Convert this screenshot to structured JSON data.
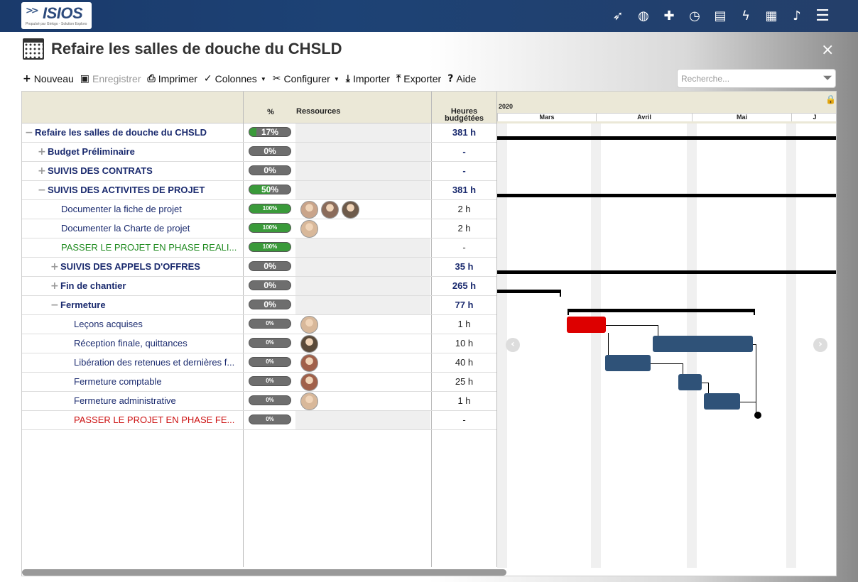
{
  "app": {
    "logo_text": "ISIOS",
    "logo_tagline": "Propulsé par Ginkgo - Solution Exploro",
    "top_icons": [
      "rocket-icon",
      "globe-icon",
      "puzzle-icon",
      "stopwatch-icon",
      "document-icon",
      "bolt-icon",
      "calendar-icon",
      "bell-icon",
      "hamburger-menu-icon"
    ]
  },
  "page": {
    "title": "Refaire les salles de douche du CHSLD",
    "close": "×"
  },
  "toolbar": {
    "nouveau": "Nouveau",
    "enregistrer": "Enregistrer",
    "imprimer": "Imprimer",
    "colonnes": "Colonnes",
    "configurer": "Configurer",
    "importer": "Importer",
    "exporter": "Exporter",
    "aide": "Aide"
  },
  "search": {
    "placeholder": "Recherche..."
  },
  "grid": {
    "headers": {
      "pct": "%",
      "resources": "Ressources",
      "hours_line1": "Heures",
      "hours_line2": "budgétées"
    },
    "rows": [
      {
        "name": "Refaire les salles de douche du CHSLD",
        "toggle": "−",
        "pct": 17,
        "pct_label": "17%",
        "hours": "381 h"
      },
      {
        "name": "Budget Préliminaire",
        "toggle": "+",
        "pct": 0,
        "pct_label": "0%",
        "hours": "-"
      },
      {
        "name": "SUIVIS DES CONTRATS",
        "toggle": "+",
        "pct": 0,
        "pct_label": "0%",
        "hours": "-"
      },
      {
        "name": "SUIVIS DES ACTIVITES DE PROJET",
        "toggle": "−",
        "pct": 50,
        "pct_label": "50%",
        "hours": "381 h"
      },
      {
        "name": "Documenter la fiche de projet",
        "pct": 100,
        "pct_label": "100%",
        "hours": "2 h"
      },
      {
        "name": "Documenter la Charte de projet",
        "pct": 100,
        "pct_label": "100%",
        "hours": "2 h"
      },
      {
        "name": "PASSER LE PROJET EN PHASE REALI...",
        "pct": 100,
        "pct_label": "100%",
        "hours": "-"
      },
      {
        "name": "SUIVIS DES APPELS D'OFFRES",
        "toggle": "+",
        "pct": 0,
        "pct_label": "0%",
        "hours": "35 h"
      },
      {
        "name": "Fin de chantier",
        "toggle": "+",
        "pct": 0,
        "pct_label": "0%",
        "hours": "265 h"
      },
      {
        "name": "Fermeture",
        "toggle": "−",
        "pct": 0,
        "pct_label": "0%",
        "hours": "77 h"
      },
      {
        "name": "Leçons acquises",
        "pct": 0,
        "pct_label": "0%",
        "hours": "1 h"
      },
      {
        "name": "Réception finale, quittances",
        "pct": 0,
        "pct_label": "0%",
        "hours": "10 h"
      },
      {
        "name": "Libération des retenues et dernières f...",
        "pct": 0,
        "pct_label": "0%",
        "hours": "40 h"
      },
      {
        "name": "Fermeture comptable",
        "pct": 0,
        "pct_label": "0%",
        "hours": "25 h"
      },
      {
        "name": "Fermeture administrative",
        "pct": 0,
        "pct_label": "0%",
        "hours": "1 h"
      },
      {
        "name": "PASSER LE PROJET EN PHASE FE...",
        "pct": 0,
        "pct_label": "0%",
        "hours": "-"
      }
    ]
  },
  "gantt": {
    "year": "2020",
    "months": [
      "Mars",
      "Avril",
      "Mai",
      "J"
    ],
    "colors": {
      "task": "#2f5278",
      "critical": "#dd0000",
      "summary": "#000000"
    }
  }
}
